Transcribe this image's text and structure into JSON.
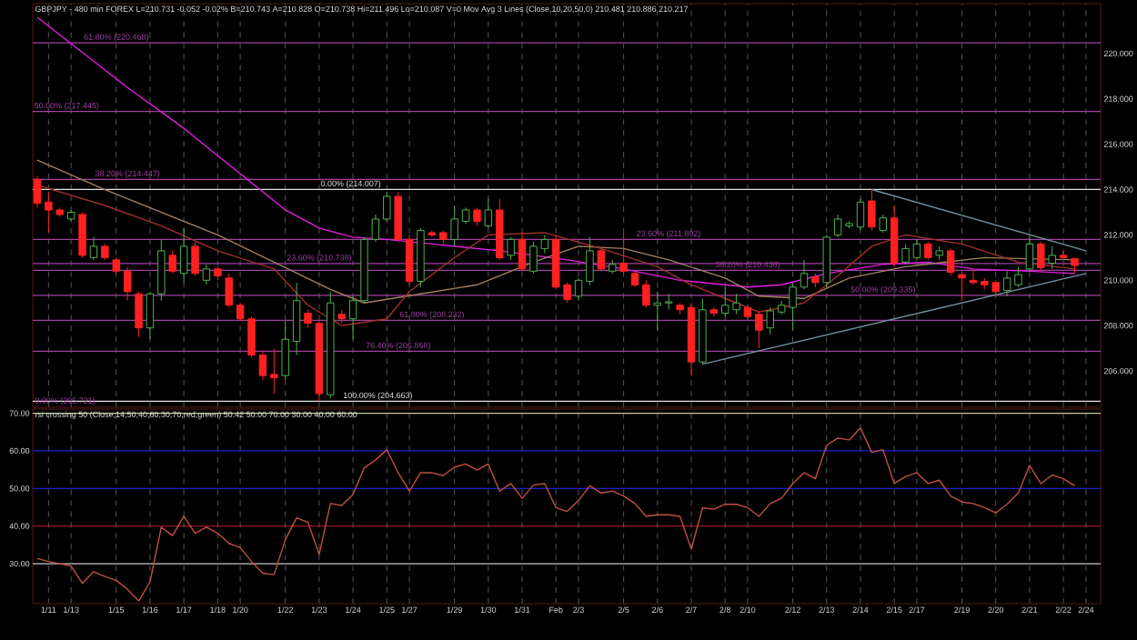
{
  "chart_data": [
    {
      "type": "candlestick",
      "title": "GBPJPY - 480 min  FOREX  L=210.731  -0.052  -0.02%  B=210.743  A=210.828  O=210.738  Hi=211.496  Lo=210.087  V=0  Mov Avg 3 Lines (Close,10,20,50,0)  210.481  210.886  210.217",
      "categories": [
        null,
        null,
        null,
        null,
        null,
        null,
        null,
        null,
        null,
        null,
        null,
        null,
        null,
        null,
        null,
        null,
        null,
        null,
        null,
        null,
        null,
        null,
        null,
        null,
        null,
        null,
        null,
        null,
        null,
        null,
        null,
        null,
        null,
        null,
        null,
        null,
        null,
        null,
        null,
        null,
        null,
        null,
        null,
        null,
        null,
        null,
        null,
        null,
        null,
        null,
        null,
        null,
        null,
        null,
        null,
        null,
        null,
        null,
        null,
        null,
        null,
        null,
        null,
        null,
        null,
        null,
        null,
        null,
        null,
        null,
        null,
        null,
        null,
        null,
        null,
        null,
        null,
        null,
        null,
        null,
        null,
        null,
        null,
        null,
        null,
        null,
        null,
        null,
        null,
        null,
        null,
        null,
        null,
        null
      ],
      "ohlc": [
        [
          214.45,
          214.6,
          213.2,
          213.4
        ],
        [
          213.45,
          213.9,
          212.1,
          213.1
        ],
        [
          213.1,
          213.2,
          212.8,
          212.9
        ],
        [
          212.7,
          213.1,
          212.6,
          213.0
        ],
        [
          212.9,
          213.0,
          211.0,
          211.1
        ],
        [
          211.0,
          211.9,
          210.9,
          211.5
        ],
        [
          211.5,
          211.6,
          210.9,
          211.0
        ],
        [
          210.9,
          211.0,
          210.3,
          210.4
        ],
        [
          210.4,
          210.6,
          209.1,
          209.5
        ],
        [
          209.4,
          209.5,
          207.5,
          207.9
        ],
        [
          207.9,
          209.5,
          207.4,
          209.4
        ],
        [
          209.4,
          211.8,
          209.1,
          211.3
        ],
        [
          211.1,
          211.3,
          210.3,
          210.4
        ],
        [
          210.3,
          212.3,
          209.9,
          211.5
        ],
        [
          211.5,
          211.7,
          210.2,
          210.3
        ],
        [
          210.0,
          210.7,
          209.8,
          210.5
        ],
        [
          210.5,
          210.6,
          210.0,
          210.2
        ],
        [
          210.1,
          210.3,
          208.8,
          208.9
        ],
        [
          208.9,
          209.0,
          208.2,
          208.3
        ],
        [
          208.3,
          208.4,
          206.6,
          206.7
        ],
        [
          206.7,
          206.9,
          205.6,
          205.8
        ],
        [
          205.85,
          207.0,
          205.0,
          205.7
        ],
        [
          205.8,
          208.2,
          205.6,
          207.4
        ],
        [
          207.3,
          209.9,
          206.7,
          209.1
        ],
        [
          208.55,
          208.7,
          207.9,
          208.1
        ],
        [
          208.1,
          208.2,
          204.663,
          205.0
        ],
        [
          204.95,
          209.5,
          204.8,
          209.0
        ],
        [
          208.5,
          208.7,
          208.1,
          208.3
        ],
        [
          208.3,
          209.3,
          207.4,
          209.1
        ],
        [
          209.1,
          211.9,
          209.0,
          211.8
        ],
        [
          211.8,
          212.9,
          211.7,
          212.7
        ],
        [
          212.7,
          213.9,
          212.6,
          213.7
        ],
        [
          213.7,
          213.9,
          211.7,
          211.8
        ],
        [
          211.8,
          212.0,
          209.8,
          209.95
        ],
        [
          209.95,
          212.3,
          209.7,
          212.2
        ],
        [
          212.1,
          212.2,
          211.9,
          212.0
        ],
        [
          212.1,
          212.2,
          211.6,
          211.8
        ],
        [
          211.8,
          213.3,
          211.5,
          212.7
        ],
        [
          212.6,
          213.2,
          212.5,
          213.1
        ],
        [
          213.1,
          213.2,
          212.4,
          212.6
        ],
        [
          212.4,
          213.6,
          212.3,
          213.1
        ],
        [
          213.1,
          213.6,
          210.9,
          211.0
        ],
        [
          211.1,
          211.9,
          210.9,
          211.8
        ],
        [
          211.8,
          212.1,
          210.4,
          210.5
        ],
        [
          210.4,
          211.7,
          210.3,
          211.5
        ],
        [
          211.4,
          212.0,
          211.2,
          211.8
        ],
        [
          211.8,
          212.0,
          209.6,
          209.7
        ],
        [
          209.8,
          209.9,
          209.0,
          209.15
        ],
        [
          209.3,
          210.1,
          209.1,
          210.0
        ],
        [
          209.95,
          211.9,
          209.8,
          211.3
        ],
        [
          211.3,
          211.4,
          210.4,
          210.5
        ],
        [
          210.4,
          210.9,
          210.3,
          210.7
        ],
        [
          210.75,
          212.1,
          210.3,
          210.4
        ],
        [
          210.3,
          210.4,
          209.7,
          209.8
        ],
        [
          209.8,
          210.0,
          208.8,
          208.9
        ],
        [
          208.9,
          209.5,
          207.8,
          209.0
        ],
        [
          209.0,
          209.4,
          208.7,
          209.05
        ],
        [
          208.9,
          209.0,
          208.5,
          208.7
        ],
        [
          208.8,
          209.0,
          205.8,
          206.4
        ],
        [
          206.4,
          209.2,
          206.3,
          208.7
        ],
        [
          208.7,
          208.8,
          208.4,
          208.55
        ],
        [
          208.55,
          209.7,
          208.4,
          208.9
        ],
        [
          208.7,
          209.4,
          208.5,
          209.0
        ],
        [
          208.8,
          208.9,
          208.3,
          208.4
        ],
        [
          208.5,
          208.6,
          207.0,
          207.8
        ],
        [
          207.9,
          208.8,
          207.6,
          208.65
        ],
        [
          208.6,
          209.1,
          208.5,
          208.9
        ],
        [
          208.8,
          209.9,
          207.8,
          209.7
        ],
        [
          209.7,
          210.9,
          209.6,
          210.3
        ],
        [
          210.15,
          210.3,
          209.7,
          209.9
        ],
        [
          209.9,
          212.0,
          209.7,
          211.9
        ],
        [
          212.0,
          212.9,
          211.9,
          212.7
        ],
        [
          212.4,
          212.6,
          212.3,
          212.5
        ],
        [
          212.35,
          213.6,
          212.2,
          213.45
        ],
        [
          213.5,
          214.007,
          212.2,
          212.35
        ],
        [
          212.2,
          212.9,
          212.1,
          212.75
        ],
        [
          212.75,
          213.3,
          210.6,
          210.75
        ],
        [
          210.8,
          211.6,
          210.7,
          211.4
        ],
        [
          211.0,
          211.8,
          210.9,
          211.6
        ],
        [
          211.6,
          211.7,
          210.9,
          211.0
        ],
        [
          211.1,
          211.5,
          210.9,
          211.3
        ],
        [
          211.3,
          211.4,
          210.2,
          210.35
        ],
        [
          210.25,
          210.4,
          209.1,
          210.1
        ],
        [
          210.0,
          210.5,
          209.8,
          209.9
        ],
        [
          209.95,
          210.1,
          209.6,
          209.8
        ],
        [
          209.9,
          210.0,
          209.3,
          209.5
        ],
        [
          209.55,
          210.4,
          209.3,
          210.1
        ],
        [
          209.8,
          210.6,
          209.7,
          210.25
        ],
        [
          210.5,
          212.0,
          210.4,
          211.6
        ],
        [
          211.6,
          211.7,
          210.4,
          210.55
        ],
        [
          210.75,
          211.5,
          210.5,
          211.1
        ],
        [
          211.1,
          211.3,
          210.9,
          211.0
        ],
        [
          210.96,
          211.0,
          210.3,
          210.65
        ],
        null
      ],
      "series": [
        {
          "type": "line",
          "color": "#e020e0",
          "values": [
            221.6,
            null,
            null,
            null,
            null,
            null,
            null,
            null,
            218.5,
            null,
            null,
            null,
            null,
            216.7,
            null,
            null,
            null,
            null,
            214.7,
            null,
            null,
            null,
            213.1,
            null,
            null,
            212.3,
            null,
            null,
            211.9,
            null,
            null,
            211.8,
            null,
            null,
            null,
            211.6,
            null,
            null,
            null,
            null,
            null,
            211.3,
            null,
            null,
            null,
            null,
            null,
            210.9,
            null,
            null,
            null,
            null,
            210.5,
            null,
            null,
            null,
            null,
            210.0,
            null,
            null,
            null,
            null,
            null,
            209.7,
            null,
            null,
            209.8,
            null,
            null,
            null,
            210.3,
            null,
            null,
            null,
            null,
            210.7,
            null,
            null,
            null,
            210.8,
            null,
            null,
            null,
            210.5,
            null,
            null,
            null,
            null,
            210.4,
            null,
            null,
            null,
            210.3,
            null
          ]
        },
        {
          "type": "line",
          "color": "#a08060",
          "values": [
            215.3,
            null,
            null,
            null,
            null,
            null,
            214.0,
            null,
            null,
            null,
            null,
            213.0,
            null,
            null,
            null,
            null,
            212.0,
            null,
            null,
            null,
            null,
            210.8,
            null,
            null,
            null,
            null,
            209.6,
            null,
            null,
            209.0,
            null,
            null,
            null,
            null,
            209.4,
            null,
            null,
            null,
            null,
            209.8,
            null,
            null,
            null,
            null,
            210.8,
            null,
            null,
            null,
            211.5,
            null,
            null,
            null,
            211.4,
            null,
            null,
            null,
            210.9,
            null,
            null,
            null,
            null,
            210.1,
            null,
            null,
            209.3,
            null,
            null,
            null,
            209.2,
            null,
            null,
            null,
            210.1,
            null,
            null,
            null,
            null,
            210.6,
            null,
            null,
            null,
            null,
            null,
            null,
            211.0,
            null,
            null,
            null,
            null,
            null,
            null,
            null,
            210.9,
            null
          ]
        },
        {
          "type": "line",
          "color": "#a03028",
          "values": [
            214.2,
            null,
            null,
            null,
            null,
            null,
            213.3,
            null,
            null,
            null,
            null,
            212.4,
            null,
            null,
            null,
            null,
            211.3,
            null,
            null,
            null,
            null,
            210.5,
            null,
            null,
            208.9,
            null,
            null,
            208.0,
            null,
            null,
            null,
            208.3,
            null,
            209.5,
            null,
            null,
            null,
            211.0,
            null,
            null,
            212.0,
            null,
            null,
            null,
            null,
            212.1,
            null,
            null,
            null,
            null,
            211.4,
            null,
            null,
            null,
            null,
            210.6,
            null,
            null,
            209.8,
            null,
            null,
            209.2,
            null,
            null,
            208.6,
            null,
            null,
            null,
            209.0,
            null,
            null,
            210.2,
            null,
            null,
            211.5,
            null,
            null,
            212.0,
            null,
            null,
            null,
            null,
            211.6,
            null,
            null,
            null,
            null,
            210.8,
            null,
            null,
            null,
            null,
            210.5,
            null
          ]
        },
        {
          "type": "line",
          "color": "#7090a0",
          "values": [
            null,
            null,
            null,
            null,
            null,
            null,
            null,
            null,
            null,
            null,
            null,
            null,
            null,
            null,
            null,
            null,
            null,
            null,
            null,
            null,
            null,
            null,
            null,
            null,
            null,
            null,
            null,
            null,
            null,
            null,
            null,
            null,
            null,
            null,
            null,
            null,
            null,
            null,
            null,
            null,
            null,
            null,
            null,
            null,
            null,
            null,
            null,
            null,
            null,
            null,
            null,
            null,
            null,
            null,
            null,
            null,
            null,
            null,
            null,
            206.3,
            null,
            null,
            null,
            null,
            null,
            null,
            null,
            null,
            null,
            null,
            null,
            null,
            null,
            null,
            null,
            null,
            null,
            null,
            null,
            null,
            null,
            null,
            null,
            null,
            null,
            null,
            null,
            null,
            null,
            null,
            null,
            null,
            null,
            210.3
          ]
        },
        {
          "type": "line",
          "color": "#7090a0",
          "values": [
            null,
            null,
            null,
            null,
            null,
            null,
            null,
            null,
            null,
            null,
            null,
            null,
            null,
            null,
            null,
            null,
            null,
            null,
            null,
            null,
            null,
            null,
            null,
            null,
            null,
            null,
            null,
            null,
            null,
            null,
            null,
            null,
            null,
            null,
            null,
            null,
            null,
            null,
            null,
            null,
            null,
            null,
            null,
            null,
            null,
            null,
            null,
            null,
            null,
            null,
            null,
            null,
            null,
            null,
            null,
            null,
            null,
            null,
            null,
            null,
            null,
            null,
            null,
            null,
            null,
            null,
            null,
            null,
            null,
            null,
            null,
            null,
            null,
            null,
            214.0,
            null,
            null,
            null,
            null,
            null,
            null,
            null,
            null,
            null,
            null,
            null,
            null,
            null,
            null,
            null,
            null,
            null,
            null,
            211.3
          ]
        }
      ],
      "ref_lines": [
        {
          "axis": "y",
          "value": 220.468,
          "label": "61.80% (220.468)",
          "color": "#a040a0"
        },
        {
          "axis": "y",
          "value": 217.445,
          "label": "50.00% (217.445)",
          "color": "#a040a0"
        },
        {
          "axis": "y",
          "value": 214.447,
          "label": "38.20% (214.447)",
          "color": "#a040a0"
        },
        {
          "axis": "y",
          "value": 210.738,
          "label": "23.60% (210.738)",
          "color": "#a040a0"
        },
        {
          "axis": "y",
          "value": 214.007,
          "label": "0.00% (214.007)",
          "color": "#e0e0e0"
        },
        {
          "axis": "y",
          "value": 211.802,
          "label": "23.60% (211.802)",
          "color": "#a040a0"
        },
        {
          "axis": "y",
          "value": 210.438,
          "label": "38.20% (210.438)",
          "color": "#a040a0"
        },
        {
          "axis": "y",
          "value": 209.335,
          "label": "50.00% (209.335)",
          "color": "#a040a0"
        },
        {
          "axis": "y",
          "value": 208.232,
          "label": "61.80% (208.232)",
          "color": "#a040a0"
        },
        {
          "axis": "y",
          "value": 206.868,
          "label": "76.40% (206.868)",
          "color": "#a040a0"
        },
        {
          "axis": "y",
          "value": 204.663,
          "label": "100.00% (204.663)",
          "color": "#e0e0e0"
        }
      ],
      "annotations": [
        "0.00% (205.721)"
      ],
      "ylim": [
        204.4,
        222.2
      ],
      "yticks": [
        {
          "value": 206,
          "label": "206.000"
        },
        {
          "value": 208,
          "label": "208.000"
        },
        {
          "value": 210,
          "label": "210.000"
        },
        {
          "value": 212,
          "label": "212.000"
        },
        {
          "value": 214,
          "label": "214.000"
        },
        {
          "value": 216,
          "label": "216.000"
        },
        {
          "value": 218,
          "label": "218.000"
        },
        {
          "value": 220,
          "label": "220.000"
        }
      ],
      "tick_labels": "y",
      "grid": "x"
    },
    {
      "type": "line",
      "title": "rsi crossing 50 (Close,14,50,40,60,30,70,red,green)  50.42  50.00  70.00  30.00  40.00  60.00",
      "categories": [
        null,
        "1/11",
        null,
        "1/13",
        null,
        null,
        null,
        "1/15",
        null,
        null,
        "1/16",
        null,
        null,
        "1/17",
        null,
        null,
        "1/18",
        null,
        "1/20",
        null,
        null,
        null,
        "1/22",
        null,
        null,
        "1/23",
        null,
        null,
        "1/24",
        null,
        null,
        "1/25",
        null,
        "1/27",
        null,
        null,
        null,
        "1/29",
        null,
        null,
        "1/30",
        null,
        null,
        "1/31",
        null,
        null,
        "Feb",
        null,
        "2/3",
        null,
        null,
        null,
        "2/5",
        null,
        null,
        "2/6",
        null,
        null,
        "2/7",
        null,
        null,
        "2/8",
        null,
        "2/10",
        null,
        null,
        null,
        "2/12",
        null,
        null,
        "2/13",
        null,
        null,
        "2/14",
        null,
        null,
        "2/15",
        null,
        "2/17",
        null,
        null,
        null,
        "2/19",
        null,
        null,
        "2/20",
        null,
        null,
        "2/21",
        null,
        null,
        "2/22",
        null,
        "2/24"
      ],
      "series": [
        {
          "color": "#c05040",
          "values": [
            31.4,
            30.6,
            30.0,
            29.4,
            24.8,
            27.9,
            26.6,
            25.6,
            23.2,
            20.1,
            25.2,
            39.7,
            37.5,
            42.6,
            38.1,
            39.7,
            38.1,
            35.4,
            34.3,
            30.6,
            27.5,
            27.1,
            36.4,
            42.2,
            41.0,
            32.5,
            46.0,
            45.5,
            48.4,
            55.5,
            57.6,
            60.3,
            54.2,
            49.3,
            54.2,
            54.2,
            53.4,
            55.7,
            56.5,
            54.9,
            56.5,
            49.3,
            51.3,
            47.4,
            50.9,
            51.3,
            44.9,
            43.9,
            46.8,
            50.7,
            48.8,
            49.3,
            48.0,
            46.0,
            42.6,
            43.0,
            43.0,
            42.6,
            33.9,
            44.9,
            44.5,
            45.8,
            45.8,
            44.9,
            42.6,
            46.0,
            47.4,
            51.3,
            54.2,
            52.6,
            61.5,
            63.4,
            62.9,
            66.1,
            59.6,
            60.3,
            51.3,
            53.2,
            54.2,
            51.3,
            52.2,
            48.0,
            46.4,
            46.0,
            44.9,
            43.5,
            45.8,
            48.8,
            56.1,
            51.3,
            53.6,
            52.6,
            50.7,
            null
          ]
        }
      ],
      "ref_lines": [
        {
          "axis": "y",
          "value": 70,
          "color": "#c8c8a0"
        },
        {
          "axis": "y",
          "value": 60,
          "color": "#2020c0"
        },
        {
          "axis": "y",
          "value": 50,
          "color": "#2020c0"
        },
        {
          "axis": "y",
          "value": 40,
          "color": "#c02020"
        },
        {
          "axis": "y",
          "value": 30,
          "color": "#c8c8c8"
        }
      ],
      "ylim": [
        19.4,
        71.1
      ],
      "yticks": [
        {
          "value": 30,
          "label": "30.00"
        },
        {
          "value": 40,
          "label": "40.00"
        },
        {
          "value": 50,
          "label": "50.00"
        },
        {
          "value": 60,
          "label": "60.00"
        },
        {
          "value": 70,
          "label": "70.00"
        }
      ],
      "grid": "x"
    }
  ]
}
